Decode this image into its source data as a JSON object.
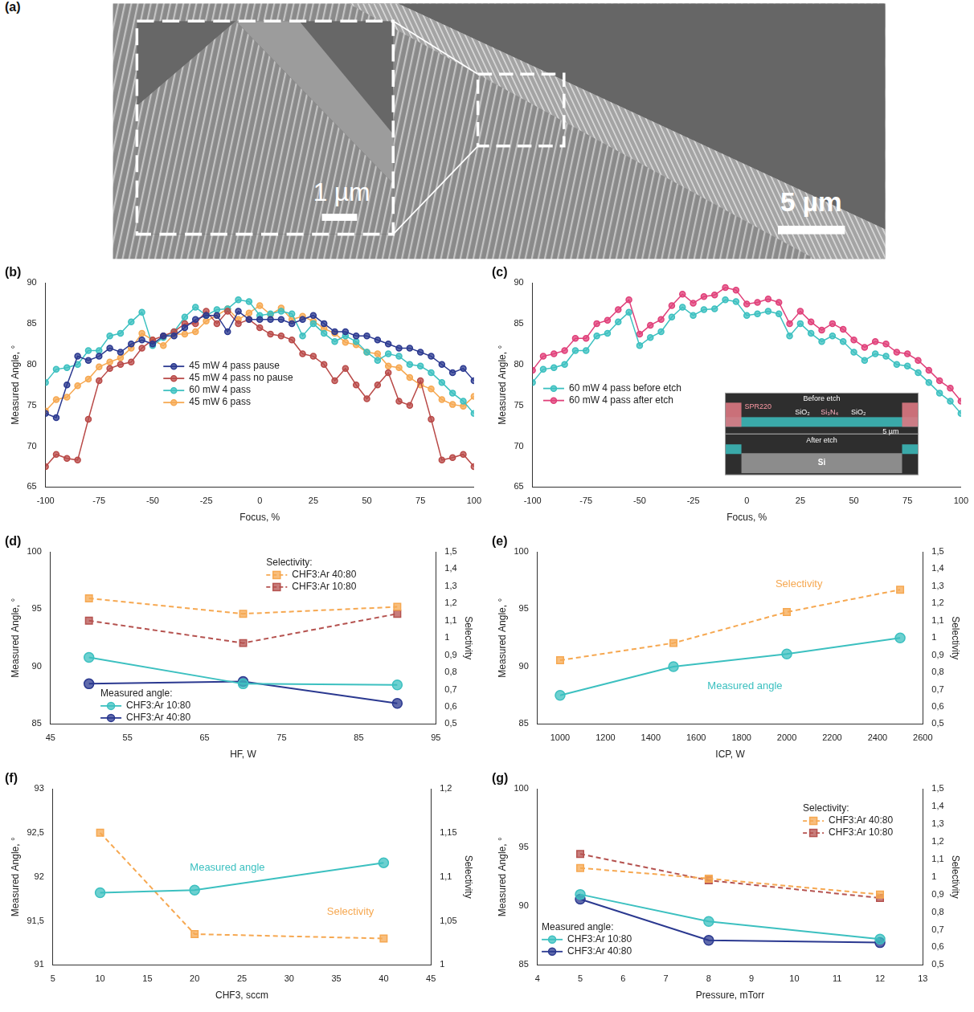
{
  "image_panels": [
    {
      "panel": "(a)",
      "scale_bars": [
        "5 µm",
        "1 µm"
      ]
    }
  ],
  "chart_data": [
    {
      "panel": "(b)",
      "type": "line",
      "x": [
        -100,
        -95,
        -90,
        -85,
        -80,
        -75,
        -70,
        -65,
        -60,
        -55,
        -50,
        -45,
        -40,
        -35,
        -30,
        -25,
        -20,
        -15,
        -10,
        -5,
        0,
        5,
        10,
        15,
        20,
        25,
        30,
        35,
        40,
        45,
        50,
        55,
        60,
        65,
        70,
        75,
        80,
        85,
        90,
        95,
        100
      ],
      "xlabel": "Focus, %",
      "ylabel": "Measured Angle, °",
      "xlim": [
        -100,
        100
      ],
      "xticks": [
        -100,
        -75,
        -50,
        -25,
        0,
        25,
        50,
        75,
        100
      ],
      "ylim": [
        65,
        90
      ],
      "yticks": [
        65,
        70,
        75,
        80,
        85,
        90
      ],
      "grid": false,
      "legend": "lower center",
      "series": [
        {
          "name": "45 mW 4 pass pause",
          "color": "#2b3990",
          "marker": "circle",
          "line_style": "solid",
          "values": [
            74,
            73.5,
            77.5,
            81,
            80.5,
            81,
            82,
            81.5,
            82.5,
            83,
            82.5,
            83.5,
            83.5,
            84.5,
            85.5,
            86,
            86,
            84,
            86.5,
            85.5,
            85.5,
            85.5,
            85.5,
            85,
            85.5,
            86,
            85,
            84,
            84,
            83.5,
            83.5,
            83,
            82.5,
            82,
            82,
            81.5,
            81,
            80,
            79,
            79.5,
            78
          ]
        },
        {
          "name": "45 mW 4 pass no pause",
          "color": "#b94a48",
          "marker": "circle",
          "line_style": "solid",
          "values": [
            67.5,
            69,
            68.5,
            68.3,
            73.3,
            78,
            79.5,
            80,
            80.3,
            82,
            83,
            83.5,
            84,
            85,
            85,
            86.5,
            85,
            86.5,
            85,
            85.5,
            84.5,
            83.7,
            83.5,
            83,
            81.3,
            81,
            80,
            78,
            79.5,
            77.5,
            75.8,
            77.5,
            79,
            75.5,
            75,
            78,
            73.3,
            68.3,
            68.6,
            69,
            67.5
          ]
        },
        {
          "name": "60 mW 4 pass",
          "color": "#3cc0c0",
          "marker": "circle",
          "line_style": "solid",
          "values": [
            77.8,
            79.4,
            79.6,
            80,
            81.7,
            81.7,
            83.5,
            83.8,
            85.2,
            86.4,
            82.3,
            83.3,
            84,
            85.8,
            87,
            86,
            86.7,
            86.8,
            87.9,
            87.7,
            86,
            86.2,
            86.5,
            86.2,
            83.5,
            85,
            83.8,
            82.8,
            83.5,
            82.8,
            81.5,
            80.5,
            81.3,
            81,
            80,
            79.8,
            79,
            77.8,
            76.5,
            75.5,
            74
          ]
        },
        {
          "name": "45 mW 6 pass",
          "color": "#f6a851",
          "marker": "circle",
          "line_style": "solid",
          "values": [
            74.3,
            75.7,
            76,
            77.4,
            78.2,
            79.7,
            80.3,
            80.8,
            82,
            83.8,
            83,
            82.3,
            83.7,
            83.7,
            84,
            85.3,
            86,
            86.8,
            85.5,
            86.3,
            87.2,
            86.1,
            86.9,
            85.5,
            85.9,
            85.3,
            84.4,
            83.8,
            82.7,
            82.4,
            81.5,
            81.3,
            79.8,
            79.6,
            78.4,
            77.5,
            77,
            75.7,
            75.1,
            74.9,
            76.1
          ]
        }
      ]
    },
    {
      "panel": "(c)",
      "type": "line",
      "x": [
        -100,
        -95,
        -90,
        -85,
        -80,
        -75,
        -70,
        -65,
        -60,
        -55,
        -50,
        -45,
        -40,
        -35,
        -30,
        -25,
        -20,
        -15,
        -10,
        -5,
        0,
        5,
        10,
        15,
        20,
        25,
        30,
        35,
        40,
        45,
        50,
        55,
        60,
        65,
        70,
        75,
        80,
        85,
        90,
        95,
        100
      ],
      "xlabel": "Focus, %",
      "ylabel": "Measured Angle, °",
      "xlim": [
        -100,
        100
      ],
      "xticks": [
        -100,
        -75,
        -50,
        -25,
        0,
        25,
        50,
        75,
        100
      ],
      "ylim": [
        65,
        90
      ],
      "yticks": [
        65,
        70,
        75,
        80,
        85,
        90
      ],
      "grid": false,
      "legend": "lower left",
      "inset": {
        "titles": [
          "Before etch",
          "After etch"
        ],
        "labels": [
          "SPR220",
          "SiO₂",
          "Si₃N₄",
          "SiO₂",
          "Si"
        ],
        "scale_bar": "5 µm"
      },
      "series": [
        {
          "name": "60 mW 4 pass before etch",
          "color": "#3cc0c0",
          "marker": "circle",
          "line_style": "solid",
          "values": [
            77.8,
            79.4,
            79.6,
            80,
            81.7,
            81.7,
            83.5,
            83.8,
            85.2,
            86.4,
            82.3,
            83.3,
            84,
            85.8,
            87,
            86,
            86.7,
            86.8,
            87.9,
            87.7,
            86,
            86.2,
            86.5,
            86.2,
            83.5,
            85,
            83.8,
            82.8,
            83.5,
            82.8,
            81.5,
            80.5,
            81.3,
            81,
            80,
            79.8,
            79,
            77.8,
            76.5,
            75.5,
            74
          ]
        },
        {
          "name": "60 mW 4 pass after etch",
          "color": "#e0407a",
          "marker": "circle",
          "line_style": "solid",
          "values": [
            79.3,
            81,
            81.3,
            81.7,
            83.2,
            83.2,
            85,
            85.4,
            86.7,
            87.9,
            83.7,
            84.8,
            85.5,
            87.2,
            88.6,
            87.5,
            88.3,
            88.5,
            89.4,
            89.1,
            87.4,
            87.6,
            88,
            87.6,
            85,
            86.5,
            85.2,
            84.2,
            85,
            84.3,
            83,
            82.1,
            82.8,
            82.5,
            81.5,
            81.3,
            80.5,
            79.3,
            78,
            77.1,
            75.5
          ]
        }
      ]
    },
    {
      "panel": "(d)",
      "type": "line",
      "x": [
        50,
        70,
        90
      ],
      "xlabel": "HF, W",
      "ylabel": "Measured Angle, °",
      "y2label": "Selectivity",
      "xlim": [
        45,
        95
      ],
      "xticks": [
        45,
        55,
        65,
        75,
        85,
        95
      ],
      "ylim": [
        85,
        100
      ],
      "yticks": [
        85,
        90,
        95,
        100
      ],
      "y2lim": [
        0.5,
        1.5
      ],
      "y2ticks": [
        {
          "value": 0.5,
          "label": "0,5"
        },
        {
          "value": 0.6,
          "label": "0,6"
        },
        {
          "value": 0.7,
          "label": "0,7"
        },
        {
          "value": 0.8,
          "label": "0,8"
        },
        {
          "value": 0.9,
          "label": "0,9"
        },
        1,
        {
          "value": 1.1,
          "label": "1,1"
        },
        {
          "value": 1.2,
          "label": "1,2"
        },
        {
          "value": 1.3,
          "label": "1,3"
        },
        {
          "value": 1.4,
          "label": "1,4"
        },
        {
          "value": 1.5,
          "label": "1,5"
        }
      ],
      "grid": false,
      "legend": "inside",
      "annotations": [
        "Selectivity:",
        "Measured angle:"
      ],
      "series": [
        {
          "name": "CHF3:Ar 40:80",
          "color": "#f6a851",
          "axis": "y2",
          "marker": "square",
          "line_style": "dashed",
          "values": [
            1.23,
            1.14,
            1.18
          ]
        },
        {
          "name": "CHF3:Ar 10:80",
          "color": "#b5524f",
          "axis": "y2",
          "marker": "square",
          "line_style": "dashed",
          "values": [
            1.1,
            0.97,
            1.14
          ]
        },
        {
          "name": "CHF3:Ar 10:80",
          "color": "#3cc0c0",
          "marker": "circle",
          "line_style": "solid",
          "values": [
            90.8,
            88.5,
            88.4
          ]
        },
        {
          "name": "CHF3:Ar 40:80",
          "color": "#2b3990",
          "marker": "circle",
          "line_style": "solid",
          "values": [
            88.5,
            88.7,
            86.8
          ]
        }
      ]
    },
    {
      "panel": "(e)",
      "type": "line",
      "x": [
        1000,
        1500,
        2000,
        2500
      ],
      "xlabel": "ICP, W",
      "ylabel": "Measured Angle, °",
      "y2label": "Selectivity",
      "xlim": [
        900,
        2600
      ],
      "xticks": [
        1000,
        1200,
        1400,
        1600,
        1800,
        2000,
        2200,
        2400,
        2600
      ],
      "ylim": [
        85,
        100
      ],
      "yticks": [
        85,
        90,
        95,
        100
      ],
      "y2lim": [
        0.5,
        1.5
      ],
      "y2ticks": [
        {
          "value": 0.5,
          "label": "0,5"
        },
        {
          "value": 0.6,
          "label": "0,6"
        },
        {
          "value": 0.7,
          "label": "0,7"
        },
        {
          "value": 0.8,
          "label": "0,8"
        },
        {
          "value": 0.9,
          "label": "0,9"
        },
        1,
        {
          "value": 1.1,
          "label": "1,1"
        },
        {
          "value": 1.2,
          "label": "1,2"
        },
        {
          "value": 1.3,
          "label": "1,3"
        },
        {
          "value": 1.4,
          "label": "1,4"
        },
        {
          "value": 1.5,
          "label": "1,5"
        }
      ],
      "grid": false,
      "annotations": [
        "Selectivity",
        "Measured angle"
      ],
      "series": [
        {
          "color": "#3cc0c0",
          "marker": "circle",
          "line_style": "solid",
          "values": [
            87.5,
            90,
            91.1,
            92.5
          ]
        },
        {
          "color": "#f6a851",
          "axis": "y2",
          "marker": "square",
          "line_style": "dashed",
          "values": [
            0.87,
            0.97,
            1.15,
            1.28
          ]
        }
      ]
    },
    {
      "panel": "(f)",
      "type": "line",
      "x": [
        10,
        20,
        40
      ],
      "xlabel": "CHF3, sccm",
      "ylabel": "Measured Angle, °",
      "y2label": "Selectivity",
      "xlim": [
        5,
        45
      ],
      "xticks": [
        5,
        10,
        15,
        20,
        25,
        30,
        35,
        40,
        45
      ],
      "ylim": [
        91,
        93
      ],
      "yticks": [
        91,
        {
          "value": 91.5,
          "label": "91,5"
        },
        92,
        {
          "value": 92.5,
          "label": "92,5"
        },
        93
      ],
      "y2lim": [
        1,
        1.2
      ],
      "y2ticks": [
        1,
        {
          "value": 1.05,
          "label": "1,05"
        },
        {
          "value": 1.1,
          "label": "1,1"
        },
        {
          "value": 1.15,
          "label": "1,15"
        },
        {
          "value": 1.2,
          "label": "1,2"
        }
      ],
      "grid": false,
      "annotations": [
        "Measured angle",
        "Selectivity"
      ],
      "series": [
        {
          "color": "#3cc0c0",
          "marker": "circle",
          "line_style": "solid",
          "values": [
            91.82,
            91.85,
            92.16
          ]
        },
        {
          "color": "#f6a851",
          "axis": "y2",
          "marker": "square",
          "line_style": "dashed",
          "values": [
            1.15,
            1.035,
            1.03
          ]
        }
      ]
    },
    {
      "panel": "(g)",
      "type": "line",
      "x": [
        5,
        8,
        12
      ],
      "xlabel": "Pressure, mTorr",
      "ylabel": "Measured Angle, °",
      "y2label": "Selectivity",
      "xlim": [
        4,
        13
      ],
      "xticks": [
        4,
        5,
        6,
        7,
        8,
        9,
        10,
        11,
        12,
        13
      ],
      "ylim": [
        85,
        100
      ],
      "yticks": [
        85,
        90,
        95,
        100
      ],
      "y2lim": [
        0.5,
        1.5
      ],
      "y2ticks": [
        {
          "value": 0.5,
          "label": "0,5"
        },
        {
          "value": 0.6,
          "label": "0,6"
        },
        {
          "value": 0.7,
          "label": "0,7"
        },
        {
          "value": 0.8,
          "label": "0,8"
        },
        {
          "value": 0.9,
          "label": "0,9"
        },
        1,
        {
          "value": 1.1,
          "label": "1,1"
        },
        {
          "value": 1.2,
          "label": "1,2"
        },
        {
          "value": 1.3,
          "label": "1,3"
        },
        {
          "value": 1.4,
          "label": "1,4"
        },
        {
          "value": 1.5,
          "label": "1,5"
        }
      ],
      "grid": false,
      "legend": "inside",
      "annotations": [
        "Selectivity:",
        "Measured angle:"
      ],
      "series": [
        {
          "name": "CHF3:Ar 40:80",
          "color": "#f6a851",
          "axis": "y2",
          "marker": "square",
          "line_style": "dashed",
          "values": [
            1.05,
            0.99,
            0.9
          ]
        },
        {
          "name": "CHF3:Ar 10:80",
          "color": "#b5524f",
          "axis": "y2",
          "marker": "square",
          "line_style": "dashed",
          "values": [
            1.13,
            0.98,
            0.88
          ]
        },
        {
          "name": "CHF3:Ar 10:80",
          "color": "#3cc0c0",
          "marker": "circle",
          "line_style": "solid",
          "values": [
            91,
            88.7,
            87.2
          ]
        },
        {
          "name": "CHF3:Ar 40:80",
          "color": "#2b3990",
          "marker": "circle",
          "line_style": "solid",
          "values": [
            90.6,
            87.1,
            86.9
          ]
        }
      ]
    }
  ]
}
